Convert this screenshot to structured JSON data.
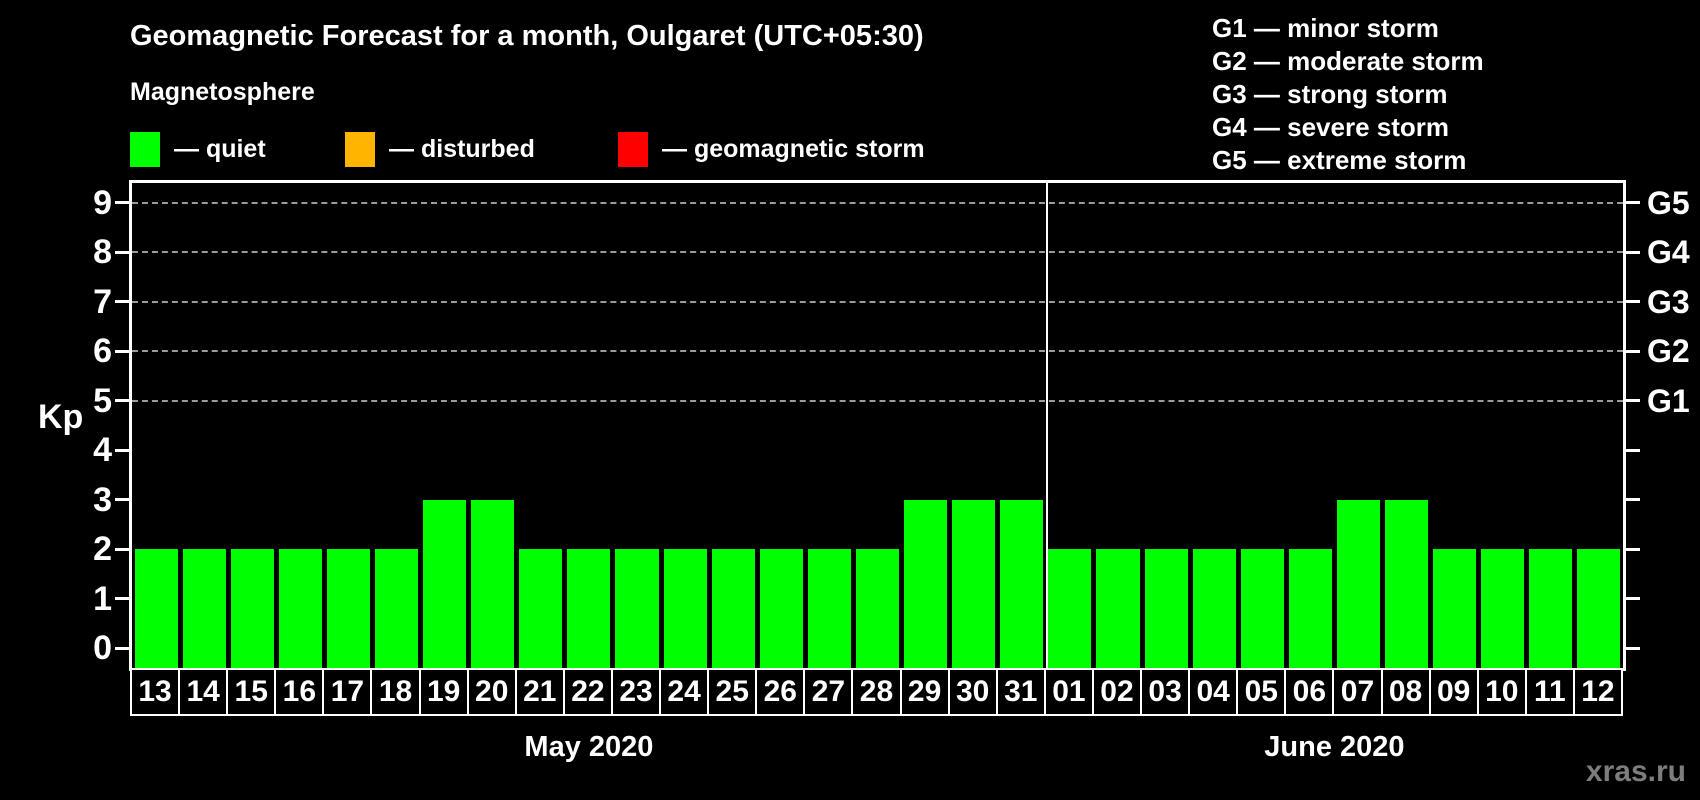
{
  "title": "Geomagnetic Forecast for a month, Oulgaret (UTC+05:30)",
  "legend": {
    "heading": "Magnetosphere",
    "items": [
      {
        "name": "quiet",
        "label": "— quiet",
        "color": "#00ff00"
      },
      {
        "name": "disturbed",
        "label": "— disturbed",
        "color": "#ffb400"
      },
      {
        "name": "storm",
        "label": "— geomagnetic storm",
        "color": "#ff0000"
      }
    ]
  },
  "storm_legend": [
    "G1 — minor storm",
    "G2 — moderate storm",
    "G3 — strong storm",
    "G4 — severe storm",
    "G5 — extreme storm"
  ],
  "watermark": "xras.ru",
  "chart_data": {
    "type": "bar",
    "title": "Geomagnetic Forecast for a month, Oulgaret (UTC+05:30)",
    "ylabel": "Kp",
    "ylim": [
      -0.4,
      9.4
    ],
    "yticks": [
      0,
      1,
      2,
      3,
      4,
      5,
      6,
      7,
      8,
      9
    ],
    "grid_levels": [
      5,
      6,
      7,
      8,
      9
    ],
    "right_axis": [
      {
        "kp": 5,
        "label": "G1"
      },
      {
        "kp": 6,
        "label": "G2"
      },
      {
        "kp": 7,
        "label": "G3"
      },
      {
        "kp": 8,
        "label": "G4"
      },
      {
        "kp": 9,
        "label": "G5"
      }
    ],
    "months": [
      {
        "label": "May 2020",
        "days": 19
      },
      {
        "label": "June 2020",
        "days": 12
      }
    ],
    "categories": [
      "13",
      "14",
      "15",
      "16",
      "17",
      "18",
      "19",
      "20",
      "21",
      "22",
      "23",
      "24",
      "25",
      "26",
      "27",
      "28",
      "29",
      "30",
      "31",
      "01",
      "02",
      "03",
      "04",
      "05",
      "06",
      "07",
      "08",
      "09",
      "10",
      "11",
      "12"
    ],
    "values": [
      2,
      2,
      2,
      2,
      2,
      2,
      3,
      3,
      2,
      2,
      2,
      2,
      2,
      2,
      2,
      2,
      3,
      3,
      3,
      2,
      2,
      2,
      2,
      2,
      2,
      3,
      3,
      2,
      2,
      2,
      2
    ],
    "color_rules": {
      "quiet": "#00ff00",
      "disturbed": "#ffb400",
      "storm": "#ff0000",
      "disturbed_min": 4,
      "storm_min": 5
    },
    "grid_color": "#9b9b9b",
    "legend_position": "top"
  }
}
